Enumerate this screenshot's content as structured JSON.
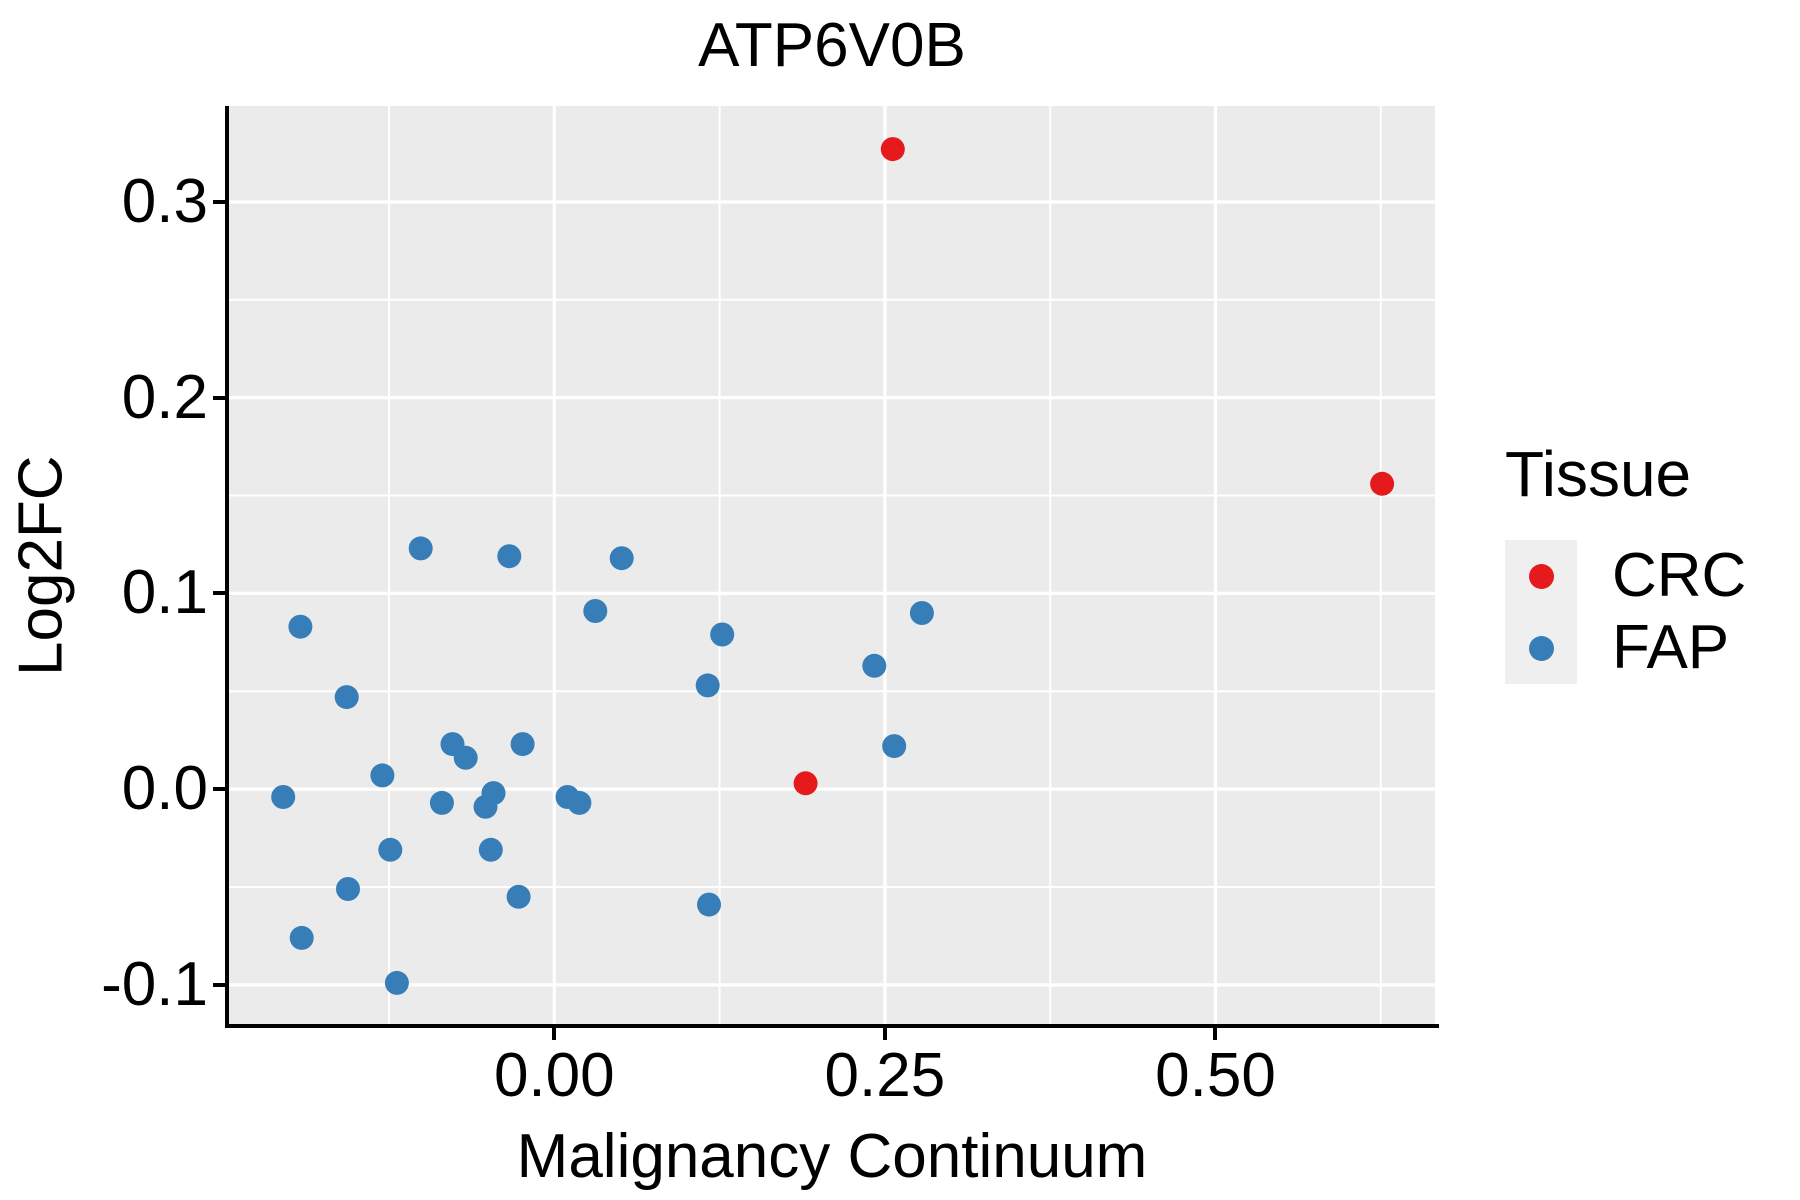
{
  "chart_data": {
    "type": "scatter",
    "title": "ATP6V0B",
    "xlabel": "Malignancy Continuum",
    "ylabel": "Log2FC",
    "xlim": [
      -0.246,
      0.666
    ],
    "ylim": [
      -0.121,
      0.349
    ],
    "x_ticks": [
      {
        "value": 0.0,
        "label": "0.00"
      },
      {
        "value": 0.25,
        "label": "0.25"
      },
      {
        "value": 0.5,
        "label": "0.50"
      }
    ],
    "y_ticks": [
      {
        "value": -0.1,
        "label": "-0.1"
      },
      {
        "value": 0.0,
        "label": "0.0"
      },
      {
        "value": 0.1,
        "label": "0.1"
      },
      {
        "value": 0.2,
        "label": "0.2"
      },
      {
        "value": 0.3,
        "label": "0.3"
      }
    ],
    "grid": {
      "on": true,
      "major_x": [
        0.0,
        0.25,
        0.5
      ],
      "minor_x": [
        -0.125,
        0.125,
        0.375,
        0.625
      ],
      "major_y": [
        -0.1,
        0.0,
        0.1,
        0.2,
        0.3
      ],
      "minor_y": [
        -0.05,
        0.05,
        0.15,
        0.25
      ]
    },
    "legend": {
      "title": "Tissue",
      "position": "right",
      "entries": [
        {
          "name": "CRC",
          "color": "#E41A1C"
        },
        {
          "name": "FAP",
          "color": "#377EB8"
        }
      ]
    },
    "series": [
      {
        "name": "CRC",
        "color": "#E41A1C",
        "points": [
          [
            0.256,
            0.327
          ],
          [
            0.626,
            0.156
          ],
          [
            0.19,
            0.003
          ]
        ]
      },
      {
        "name": "FAP",
        "color": "#377EB8",
        "points": [
          [
            -0.101,
            0.123
          ],
          [
            -0.034,
            0.119
          ],
          [
            0.051,
            0.118
          ],
          [
            0.031,
            0.091
          ],
          [
            -0.192,
            0.083
          ],
          [
            -0.157,
            0.047
          ],
          [
            -0.077,
            0.023
          ],
          [
            -0.067,
            0.016
          ],
          [
            -0.024,
            0.023
          ],
          [
            -0.13,
            0.007
          ],
          [
            -0.205,
            -0.004
          ],
          [
            -0.085,
            -0.007
          ],
          [
            -0.046,
            -0.002
          ],
          [
            -0.052,
            -0.009
          ],
          [
            0.01,
            -0.004
          ],
          [
            0.019,
            -0.007
          ],
          [
            -0.124,
            -0.031
          ],
          [
            -0.048,
            -0.031
          ],
          [
            -0.156,
            -0.051
          ],
          [
            -0.027,
            -0.055
          ],
          [
            -0.191,
            -0.076
          ],
          [
            -0.119,
            -0.099
          ],
          [
            0.257,
            0.022
          ],
          [
            0.127,
            0.079
          ],
          [
            0.278,
            0.09
          ],
          [
            0.242,
            0.063
          ],
          [
            0.116,
            0.053
          ],
          [
            0.117,
            -0.059
          ]
        ]
      }
    ],
    "point_radius": 12,
    "colors": {
      "panel_bg": "#EBEBEB",
      "grid": "#FFFFFF",
      "axis": "#000000",
      "text": "#000000",
      "legend_key_bg": "#EFEFEF"
    }
  }
}
